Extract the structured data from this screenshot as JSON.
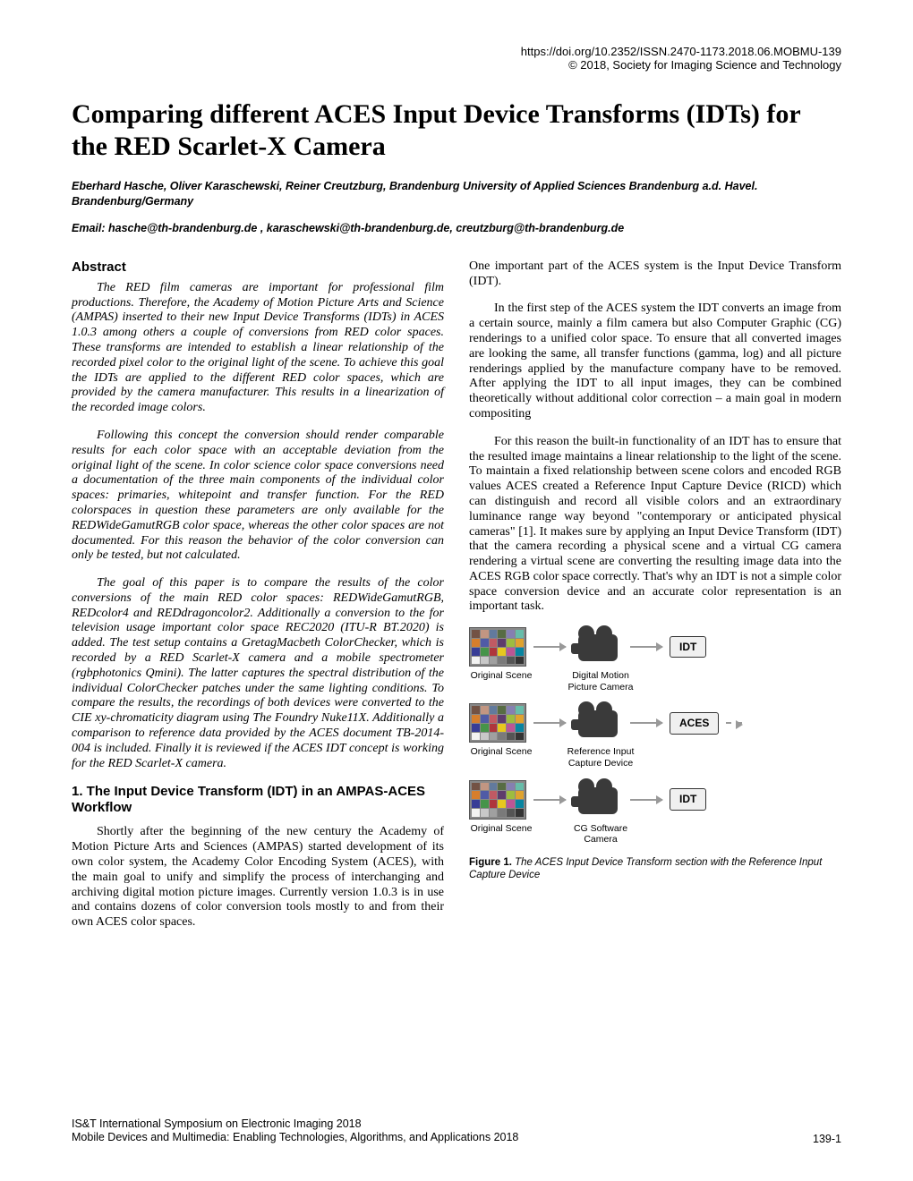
{
  "header": {
    "doi": "https://doi.org/10.2352/ISSN.2470-1173.2018.06.MOBMU-139",
    "copyright": "© 2018, Society for Imaging Science and Technology"
  },
  "title": "Comparing different ACES Input Device Transforms (IDTs) for the RED Scarlet-X Camera",
  "authors": "Eberhard Hasche, Oliver Karaschewski, Reiner Creutzburg, Brandenburg University of Applied Sciences Brandenburg a.d. Havel. Brandenburg/Germany",
  "emails": "Email: hasche@th-brandenburg.de , karaschewski@th-brandenburg.de, creutzburg@th-brandenburg.de",
  "abstract_heading": "Abstract",
  "abstract": {
    "p1": "The RED film cameras are important for professional film productions. Therefore, the Academy of Motion Picture Arts and Science (AMPAS) inserted to their new Input Device Transforms (IDTs) in ACES 1.0.3 among others a couple of conversions from RED color spaces. These transforms are intended to establish a linear relationship of the recorded pixel color to the original light of the scene. To achieve this goal the IDTs are applied to the different RED color spaces, which are provided by the camera manufacturer. This results in a linearization of the recorded image colors.",
    "p2": "Following this concept the conversion should render comparable results for each color space with an acceptable deviation from the original light of the scene. In color science color space conversions need a documentation of the three main components of the individual color spaces: primaries, whitepoint and transfer function. For the RED colorspaces in question these parameters are only available for the REDWideGamutRGB color space, whereas the other color spaces are not documented. For this reason the behavior of the color conversion can only be tested, but not calculated.",
    "p3": "The goal of this paper is to compare the results of the color conversions of the main RED color spaces: REDWideGamutRGB, REDcolor4 and REDdragoncolor2. Additionally a conversion to the for television usage important color space REC2020 (ITU-R BT.2020) is added. The test setup contains a GretagMacbeth ColorChecker, which is recorded by a RED Scarlet-X camera and a mobile spectrometer (rgbphotonics Qmini). The latter captures the spectral distribution of the individual ColorChecker patches under the same lighting conditions. To compare the results, the recordings of both devices were converted to the CIE xy-chromaticity diagram using The Foundry Nuke11X. Additionally a comparison to reference data provided by the ACES document TB-2014-004 is included. Finally it is reviewed if the ACES IDT concept is working for the RED Scarlet-X camera."
  },
  "section1_heading": "1. The Input Device Transform (IDT) in an AMPAS-ACES Workflow",
  "body": {
    "p1": "Shortly after the beginning of the new century the Academy of Motion Picture Arts and Sciences (AMPAS) started development of its own color system, the Academy Color Encoding System (ACES), with the main goal to unify and simplify the process of interchanging and archiving digital motion picture images. Currently version 1.0.3 is in use and contains dozens of color conversion tools mostly to and from their own ACES color spaces.",
    "p2": "One important part of the ACES system is the Input Device Transform (IDT).",
    "p3": "In the first step of the ACES system the IDT converts an image from a certain source, mainly a film camera but also Computer Graphic (CG) renderings to a unified color space. To ensure that all converted images are looking the same, all transfer functions (gamma, log) and all picture renderings applied by the manufacture company have to be removed. After applying the IDT to all input images, they can be combined theoretically without additional color correction – a main goal in modern compositing",
    "p4": "For this reason the built-in functionality of an IDT has to ensure that the resulted image maintains a linear relationship to the light of the scene. To maintain a fixed relationship between scene colors and encoded RGB values ACES created a Reference Input Capture Device (RICD) which can distinguish and record all visible colors and an extraordinary luminance range way beyond \"contemporary or anticipated physical cameras\" [1]. It makes sure by applying an Input Device Transform (IDT) that the camera recording a physical scene and a virtual CG camera rendering a virtual scene are converting the resulting image data into the ACES RGB color space correctly. That's why an IDT is not a simple color space conversion device and an accurate color representation is an important task."
  },
  "figure1": {
    "row1_mid_label": "Digital Motion Picture Camera",
    "row2_mid_label": "Reference Input Capture Device",
    "row3_mid_label": "CG Software Camera",
    "scene_label": "Original Scene",
    "idt_label": "IDT",
    "aces_label": "ACES",
    "caption_bold": "Figure 1.",
    "caption_text": " The ACES Input Device Transform section with the Reference Input Capture Device",
    "colorchecker_colors": [
      "#735244",
      "#c29682",
      "#627a9d",
      "#576c43",
      "#8580b1",
      "#67bdaa",
      "#d67e2c",
      "#505ba6",
      "#c15a63",
      "#5e3c6c",
      "#9dbc40",
      "#e0a32e",
      "#383d96",
      "#469449",
      "#af363c",
      "#e7c71f",
      "#bb5695",
      "#0885a1",
      "#f3f3f2",
      "#c8c8c8",
      "#a0a0a0",
      "#7a7a7a",
      "#555555",
      "#343434"
    ]
  },
  "footer": {
    "line1": "IS&T International Symposium on Electronic Imaging 2018",
    "line2": "Mobile Devices and Multimedia: Enabling Technologies, Algorithms, and Applications 2018",
    "page": "139-1"
  }
}
